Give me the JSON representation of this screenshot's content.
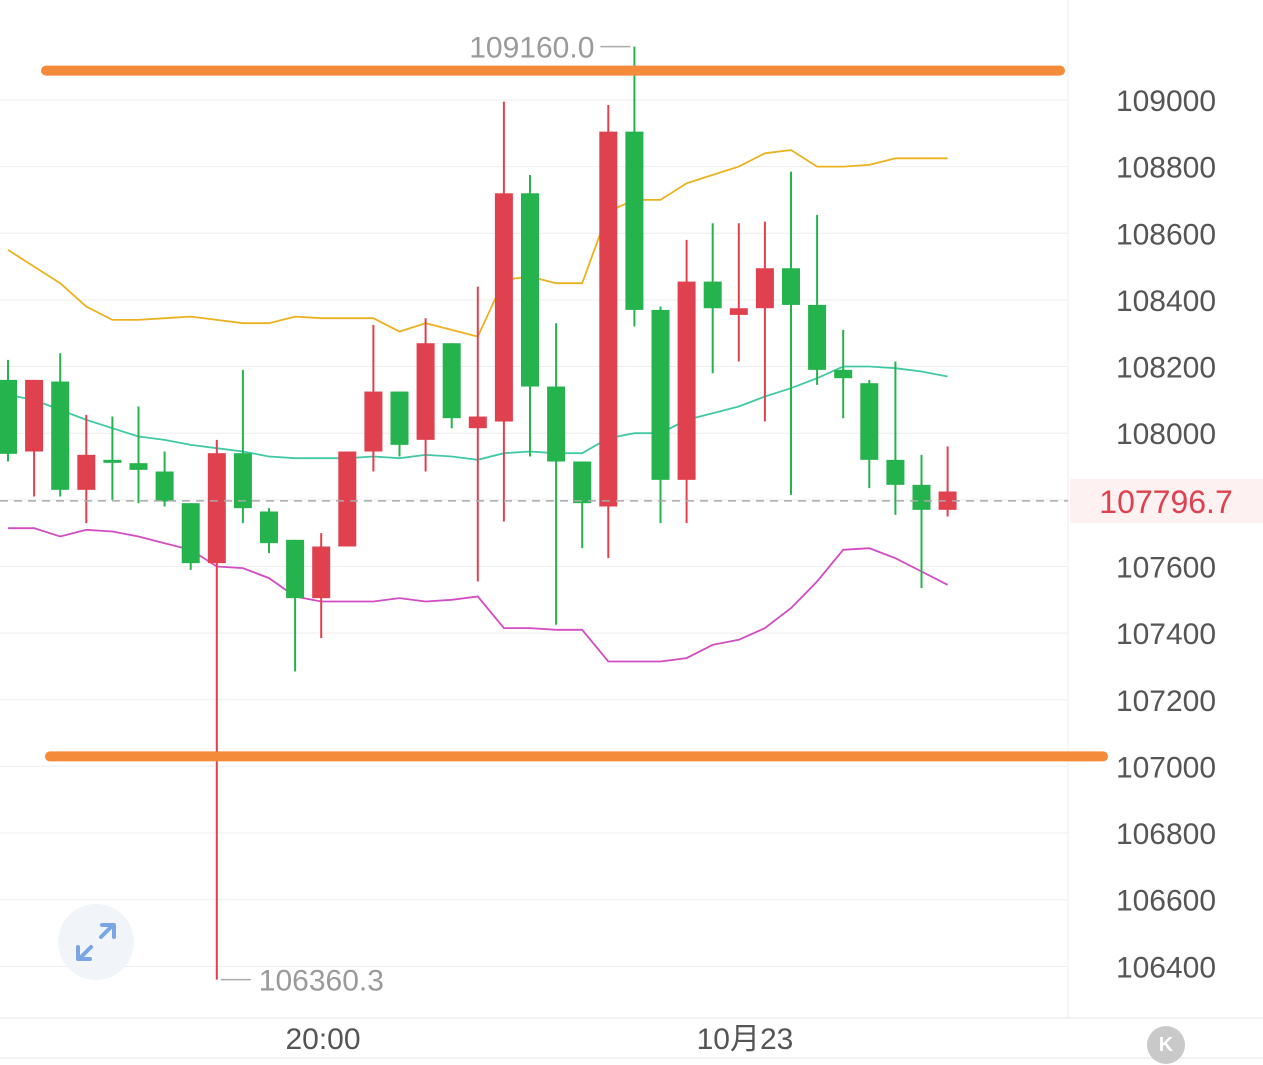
{
  "chart_data": {
    "type": "candlestick",
    "y_axis": {
      "ticks": [
        106400,
        106600,
        106800,
        107000,
        107200,
        107400,
        107600,
        107800,
        108000,
        108200,
        108400,
        108600,
        108800,
        109000
      ],
      "tick_labels": [
        "106400",
        "106600",
        "106800",
        "107000",
        "107200",
        "107400",
        "107600",
        "",
        "108000",
        "108200",
        "108400",
        "108600",
        "108800",
        "109000"
      ],
      "ylim": [
        106245,
        109300
      ]
    },
    "x_axis": {
      "tick_labels": [
        "20:00",
        "10月23"
      ]
    },
    "current_price": {
      "value": 107796.7,
      "label": "107796.7"
    },
    "max_marker": {
      "value": 109160.0,
      "label": "109160.0"
    },
    "min_marker": {
      "value": 106360.3,
      "label": "106360.3"
    },
    "support_resistance": [
      {
        "name": "resistance",
        "value": 109088,
        "color": "#f38b3a"
      },
      {
        "name": "support",
        "value": 107030,
        "color": "#f38b3a"
      }
    ],
    "colors": {
      "up": "#25b34d",
      "down": "#e0414f",
      "upper_band": "#ecb11f",
      "middle_band": "#41c9a6",
      "lower_band": "#d24cc2",
      "grid": "#eeeeee"
    },
    "candles": [
      {
        "o": 107938,
        "h": 108220,
        "l": 107915,
        "c": 108160
      },
      {
        "o": 108160,
        "h": 108160,
        "l": 107810,
        "c": 107945
      },
      {
        "o": 107830,
        "h": 108240,
        "l": 107810,
        "c": 108155
      },
      {
        "o": 107935,
        "h": 108055,
        "l": 107730,
        "c": 107830
      },
      {
        "o": 107920,
        "h": 108050,
        "l": 107800,
        "c": 107920
      },
      {
        "o": 107890,
        "h": 108080,
        "l": 107790,
        "c": 107910
      },
      {
        "o": 107795,
        "h": 107945,
        "l": 107780,
        "c": 107885
      },
      {
        "o": 107610,
        "h": 107790,
        "l": 107590,
        "c": 107790
      },
      {
        "o": 107940,
        "h": 107980,
        "l": 106360,
        "c": 107610
      },
      {
        "o": 107775,
        "h": 108190,
        "l": 107730,
        "c": 107940
      },
      {
        "o": 107670,
        "h": 107775,
        "l": 107640,
        "c": 107765
      },
      {
        "o": 107505,
        "h": 107680,
        "l": 107285,
        "c": 107680
      },
      {
        "o": 107660,
        "h": 107700,
        "l": 107385,
        "c": 107505
      },
      {
        "o": 107945,
        "h": 107945,
        "l": 107660,
        "c": 107660
      },
      {
        "o": 108125,
        "h": 108325,
        "l": 107885,
        "c": 107945
      },
      {
        "o": 107965,
        "h": 108125,
        "l": 107930,
        "c": 108125
      },
      {
        "o": 108270,
        "h": 108345,
        "l": 107885,
        "c": 107980
      },
      {
        "o": 108045,
        "h": 108270,
        "l": 108015,
        "c": 108270
      },
      {
        "o": 108050,
        "h": 108440,
        "l": 107555,
        "c": 108015
      },
      {
        "o": 108720,
        "h": 108995,
        "l": 107735,
        "c": 108035
      },
      {
        "o": 108140,
        "h": 108775,
        "l": 107930,
        "c": 108720
      },
      {
        "o": 107915,
        "h": 108330,
        "l": 107425,
        "c": 108140
      },
      {
        "o": 107790,
        "h": 107915,
        "l": 107655,
        "c": 107915
      },
      {
        "o": 108905,
        "h": 108985,
        "l": 107625,
        "c": 107780
      },
      {
        "o": 108370,
        "h": 109160,
        "l": 108320,
        "c": 108905
      },
      {
        "o": 107860,
        "h": 108380,
        "l": 107730,
        "c": 108370
      },
      {
        "o": 108455,
        "h": 108580,
        "l": 107730,
        "c": 107860
      },
      {
        "o": 108375,
        "h": 108630,
        "l": 108180,
        "c": 108455
      },
      {
        "o": 108375,
        "h": 108630,
        "l": 108215,
        "c": 108355
      },
      {
        "o": 108495,
        "h": 108635,
        "l": 108035,
        "c": 108375
      },
      {
        "o": 108385,
        "h": 108785,
        "l": 107815,
        "c": 108495
      },
      {
        "o": 108190,
        "h": 108655,
        "l": 108145,
        "c": 108385
      },
      {
        "o": 108165,
        "h": 108310,
        "l": 108045,
        "c": 108190
      },
      {
        "o": 107920,
        "h": 108160,
        "l": 107835,
        "c": 108150
      },
      {
        "o": 107845,
        "h": 108215,
        "l": 107755,
        "c": 107920
      },
      {
        "o": 107770,
        "h": 107935,
        "l": 107535,
        "c": 107845
      },
      {
        "o": 107825,
        "h": 107960,
        "l": 107750,
        "c": 107770
      }
    ],
    "bands": {
      "upper": [
        108550,
        108500,
        108450,
        108380,
        108340,
        108340,
        108345,
        108350,
        108340,
        108330,
        108330,
        108350,
        108345,
        108345,
        108345,
        108305,
        108330,
        108310,
        108290,
        108460,
        108470,
        108450,
        108450,
        108665,
        108700,
        108700,
        108750,
        108775,
        108800,
        108840,
        108850,
        108800,
        108800,
        108805,
        108825,
        108825,
        108825
      ],
      "middle": [
        108115,
        108100,
        108070,
        108040,
        108015,
        107990,
        107980,
        107965,
        107955,
        107945,
        107930,
        107925,
        107925,
        107925,
        107930,
        107925,
        107935,
        107930,
        107920,
        107940,
        107945,
        107940,
        107940,
        107985,
        108000,
        108000,
        108040,
        108060,
        108080,
        108110,
        108135,
        108165,
        108200,
        108200,
        108195,
        108185,
        108170
      ],
      "lower": [
        107715,
        107715,
        107690,
        107710,
        107705,
        107690,
        107670,
        107650,
        107600,
        107595,
        107565,
        107510,
        107495,
        107495,
        107495,
        107505,
        107495,
        107500,
        107510,
        107415,
        107415,
        107410,
        107410,
        107315,
        107315,
        107315,
        107325,
        107365,
        107380,
        107415,
        107475,
        107555,
        107650,
        107655,
        107625,
        107585,
        107545
      ]
    }
  }
}
